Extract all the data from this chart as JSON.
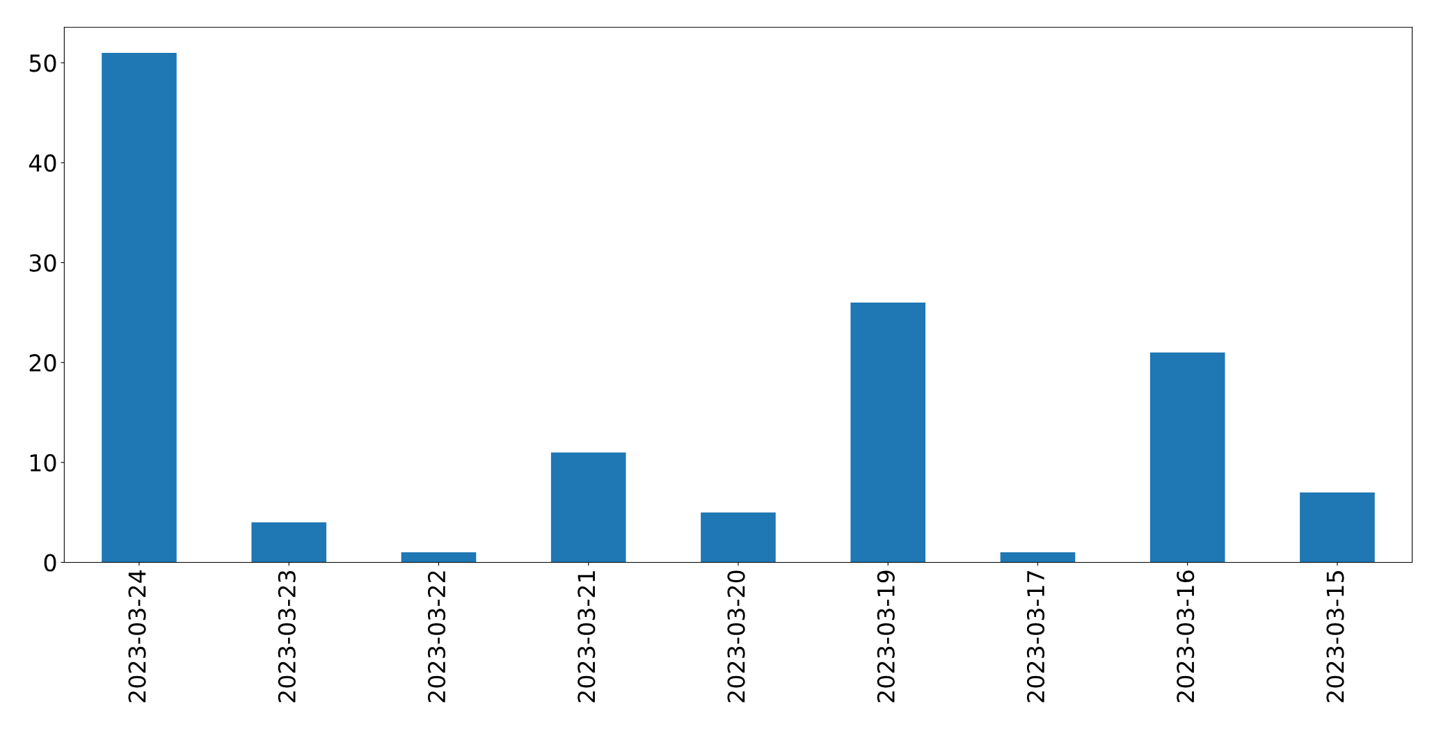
{
  "chart_data": {
    "type": "bar",
    "categories": [
      "2023-03-24",
      "2023-03-23",
      "2023-03-22",
      "2023-03-21",
      "2023-03-20",
      "2023-03-19",
      "2023-03-17",
      "2023-03-16",
      "2023-03-15"
    ],
    "values": [
      51,
      4,
      1,
      11,
      5,
      26,
      1,
      21,
      7
    ],
    "color": "#1f77b4",
    "ylim": [
      0,
      53.55
    ],
    "yticks": [
      0,
      10,
      20,
      30,
      40,
      50
    ],
    "grid": false,
    "legend": false
  }
}
